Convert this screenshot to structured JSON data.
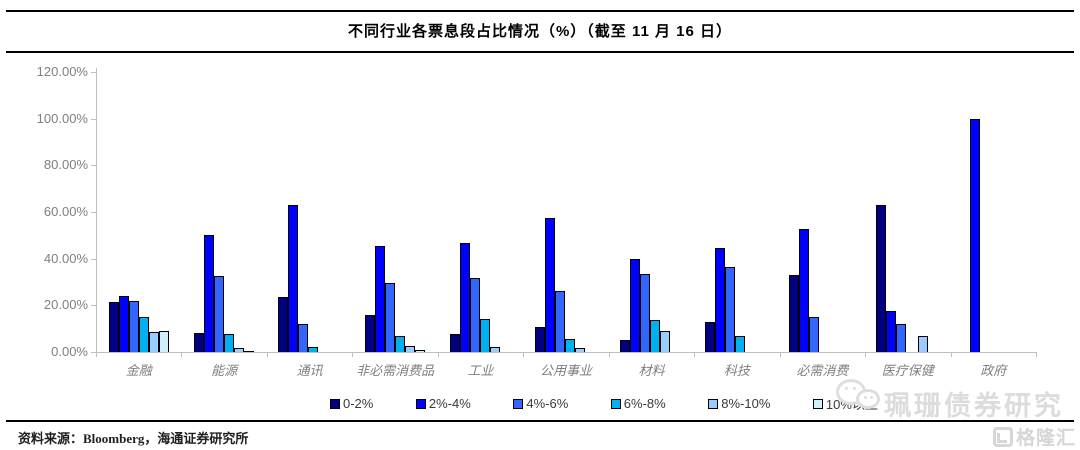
{
  "header": {
    "title": "不同行业各票息段占比情况（%）（截至 11 月 16 日）"
  },
  "footer": {
    "source_text": "资料来源：Bloomberg，海通证券研究所"
  },
  "watermarks": {
    "wechat_account": "珮珊债券研究",
    "site_logo": "格隆汇"
  },
  "chart_data": {
    "type": "bar",
    "title": "不同行业各票息段占比情况（%）（截至 11 月 16 日）",
    "categories": [
      "金融",
      "能源",
      "通讯",
      "非必需消费品",
      "工业",
      "公用事业",
      "材料",
      "科技",
      "必需消费",
      "医疗保健",
      "政府"
    ],
    "series": [
      {
        "name": "0-2%",
        "color": "#000080",
        "values": [
          21.3,
          8.3,
          23.5,
          16.0,
          7.5,
          10.8,
          5.0,
          12.8,
          33.0,
          63.0,
          0
        ]
      },
      {
        "name": "2%-4%",
        "color": "#0000FF",
        "values": [
          24.0,
          50.0,
          63.0,
          45.5,
          46.5,
          57.5,
          40.0,
          44.5,
          52.5,
          17.5,
          100.0
        ]
      },
      {
        "name": "4%-6%",
        "color": "#3366FF",
        "values": [
          21.7,
          32.5,
          12.0,
          29.5,
          31.5,
          26.0,
          33.5,
          36.5,
          15.0,
          12.0,
          0
        ]
      },
      {
        "name": "6%-8%",
        "color": "#00B0F0",
        "values": [
          15.0,
          7.7,
          2.0,
          7.0,
          14.0,
          5.5,
          13.5,
          7.0,
          0,
          0,
          0
        ]
      },
      {
        "name": "8%-10%",
        "color": "#99CCFF",
        "values": [
          8.7,
          1.5,
          0,
          2.5,
          2.0,
          1.5,
          9.0,
          0,
          0,
          7.0,
          0
        ]
      },
      {
        "name": "10%以上",
        "color": "#CFF0FA",
        "values": [
          9.0,
          0.6,
          0,
          1.0,
          0,
          0,
          0,
          0,
          0,
          0,
          0
        ]
      }
    ],
    "ylim": [
      0,
      120
    ],
    "ytick_step": 20,
    "y_tick_labels": [
      "0.00%",
      "20.00%",
      "40.00%",
      "60.00%",
      "80.00%",
      "100.00%",
      "120.00%"
    ],
    "xlabel": "",
    "ylabel": "",
    "grid": false,
    "legend_position": "bottom",
    "axis_color": "#bfbfbf",
    "bar_border_color": "#000000"
  }
}
